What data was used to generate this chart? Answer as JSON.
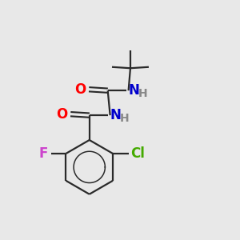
{
  "background_color": "#e8e8e8",
  "bond_color": "#2a2a2a",
  "atom_colors": {
    "O": "#ff0000",
    "N": "#0000cc",
    "F": "#cc44cc",
    "Cl": "#44aa00",
    "H_gray": "#888888",
    "C": "#2a2a2a"
  },
  "figsize": [
    3.0,
    3.0
  ],
  "dpi": 100,
  "xlim": [
    0,
    10
  ],
  "ylim": [
    0,
    10
  ]
}
